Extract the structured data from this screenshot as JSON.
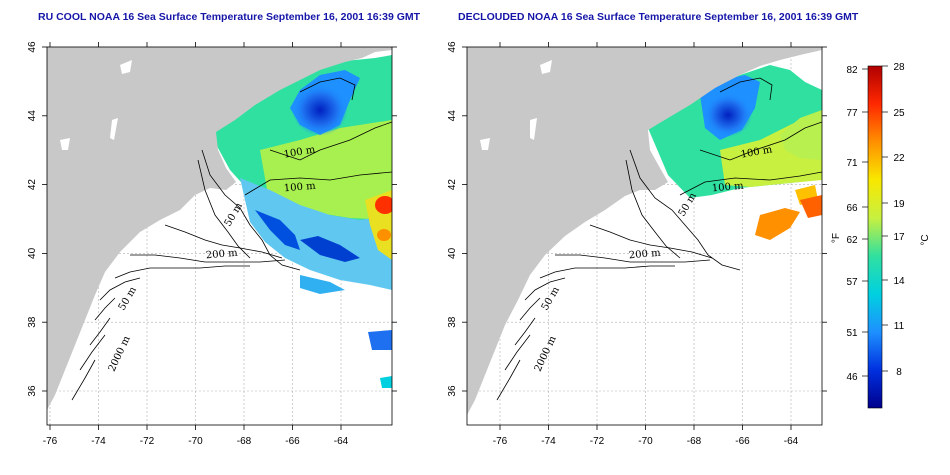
{
  "panels": [
    {
      "title": "RU COOL NOAA 16 Sea Surface Temperature September 16, 2001 16:39 GMT",
      "variant": "cloudy",
      "contour_labels": [
        {
          "text": "100 m"
        },
        {
          "text": "100 m"
        },
        {
          "text": "50 m"
        },
        {
          "text": "200 m"
        },
        {
          "text": "50 m"
        },
        {
          "text": "2000 m"
        }
      ]
    },
    {
      "title": "DECLOUDED NOAA 16 Sea Surface Temperature September 16, 2001 16:39 GMT",
      "variant": "declouded",
      "contour_labels": [
        {
          "text": "100 m"
        },
        {
          "text": "100 m"
        },
        {
          "text": "50 m"
        },
        {
          "text": "200 m"
        },
        {
          "text": "50 m"
        },
        {
          "text": "2000 m"
        }
      ]
    }
  ],
  "axes": {
    "x_ticks": [
      "-76",
      "-74",
      "-72",
      "-70",
      "-68",
      "-66",
      "-64"
    ],
    "y_ticks": [
      "46",
      "44",
      "42",
      "40",
      "38",
      "36"
    ]
  },
  "colorbar": {
    "f_ticks": [
      "82",
      "77",
      "71",
      "66",
      "62",
      "57",
      "51",
      "46"
    ],
    "c_ticks": [
      "28",
      "25",
      "22",
      "19",
      "17",
      "14",
      "11",
      "8"
    ],
    "f_unit": "°F",
    "c_unit": "°C",
    "colors": [
      "#00008c",
      "#0030e0",
      "#1e90ff",
      "#00d0e0",
      "#30e0a0",
      "#c8f040",
      "#f8e800",
      "#ff9000",
      "#ff2800",
      "#b00000"
    ]
  },
  "colors": {
    "land": "#c8c8c8",
    "title": "#1515a8",
    "gridline": "#b0b0b0"
  }
}
